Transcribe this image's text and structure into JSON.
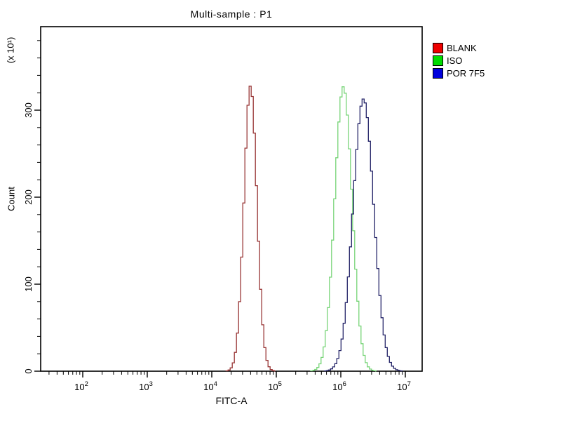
{
  "title": "Multi-sample : P1",
  "axes": {
    "x": {
      "label": "FITC-A",
      "scale": "log10",
      "tick_exponents": [
        2,
        3,
        4,
        5,
        6,
        7
      ],
      "visible_range_log10": [
        1.35,
        7.26
      ]
    },
    "y": {
      "label": "Count",
      "multiplier_label": "(x 10¹)",
      "tick_values": [
        0,
        100,
        200,
        300
      ],
      "minor_step": 20,
      "max_visible": 395
    }
  },
  "legend": {
    "items": [
      {
        "label": "BLANK",
        "color": "#ee0000"
      },
      {
        "label": "ISO",
        "color": "#00dd00"
      },
      {
        "label": "POR 7F5",
        "color": "#0000dd"
      }
    ]
  },
  "chart_data": {
    "type": "line",
    "subtype": "flow-cytometry-histogram",
    "title": "Multi-sample : P1",
    "xlabel": "FITC-A",
    "ylabel": "Count",
    "y_unit_multiplier": 10,
    "xscale": "log10",
    "xlim_log10": [
      1.35,
      7.26
    ],
    "ylim": [
      0,
      395
    ],
    "series": [
      {
        "name": "BLANK",
        "legend_color": "#ee0000",
        "curve_color": "#993636",
        "peak_x": 40000,
        "peak_x_log10": 4.6,
        "peak_count": 328,
        "sigma_log10": 0.1
      },
      {
        "name": "ISO",
        "legend_color": "#00dd00",
        "curve_color": "#77d477",
        "peak_x": 1100000,
        "peak_x_log10": 6.04,
        "peak_count": 327,
        "sigma_log10": 0.134
      },
      {
        "name": "POR 7F5",
        "legend_color": "#0000dd",
        "curve_color": "#242468",
        "peak_x": 2200000,
        "peak_x_log10": 6.35,
        "peak_count": 313,
        "sigma_log10": 0.16
      }
    ],
    "legend_position": "outside-top-right",
    "grid": false
  }
}
